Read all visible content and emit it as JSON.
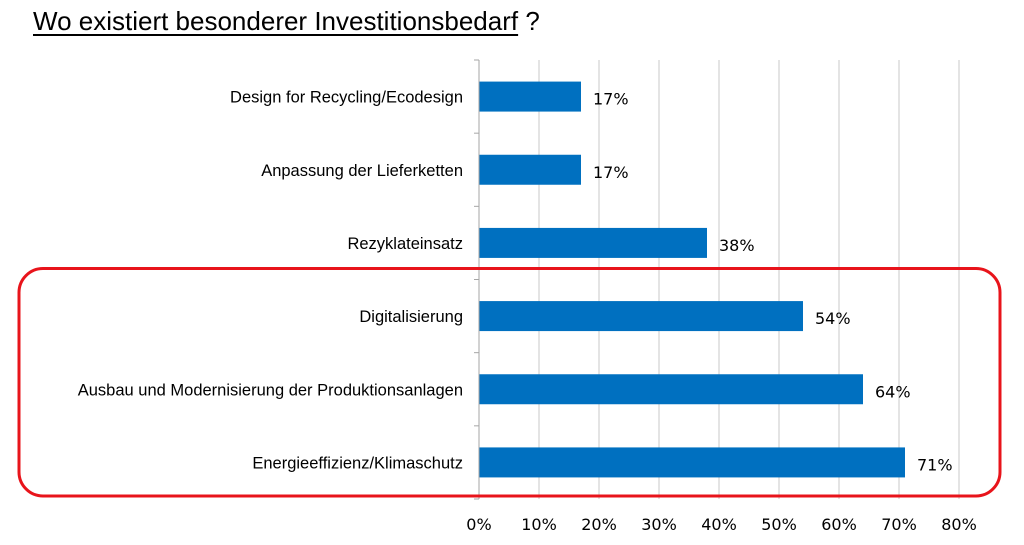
{
  "chart_data": {
    "type": "bar",
    "orientation": "horizontal",
    "title": "Wo existiert besonderer Investitionsbedarf",
    "title_suffix": "?",
    "categories": [
      "Design for Recycling/Ecodesign",
      "Anpassung der Lieferketten",
      "Rezyklateinsatz",
      "Digitalisierung",
      "Ausbau und Modernisierung der Produktionsanlagen",
      "Energieeffizienz/Klimaschutz"
    ],
    "values": [
      17,
      17,
      38,
      54,
      64,
      71
    ],
    "value_labels": [
      "17%",
      "17%",
      "38%",
      "54%",
      "64%",
      "71%"
    ],
    "xlim": [
      0,
      80
    ],
    "x_ticks": [
      0,
      10,
      20,
      30,
      40,
      50,
      60,
      70,
      80
    ],
    "x_tick_labels": [
      "0%",
      "10%",
      "20%",
      "30%",
      "40%",
      "50%",
      "60%",
      "70%",
      "80%"
    ],
    "xlabel": "",
    "ylabel": "",
    "grid": "vertical",
    "bar_color": "#0070c0",
    "grid_color": "#c8c8c8",
    "highlight": {
      "categories": [
        "Digitalisierung",
        "Ausbau und Modernisierung der Produktionsanlagen",
        "Energieeffizienz/Klimaschutz"
      ],
      "color": "#e8141b",
      "shape": "rounded-rectangle"
    }
  }
}
